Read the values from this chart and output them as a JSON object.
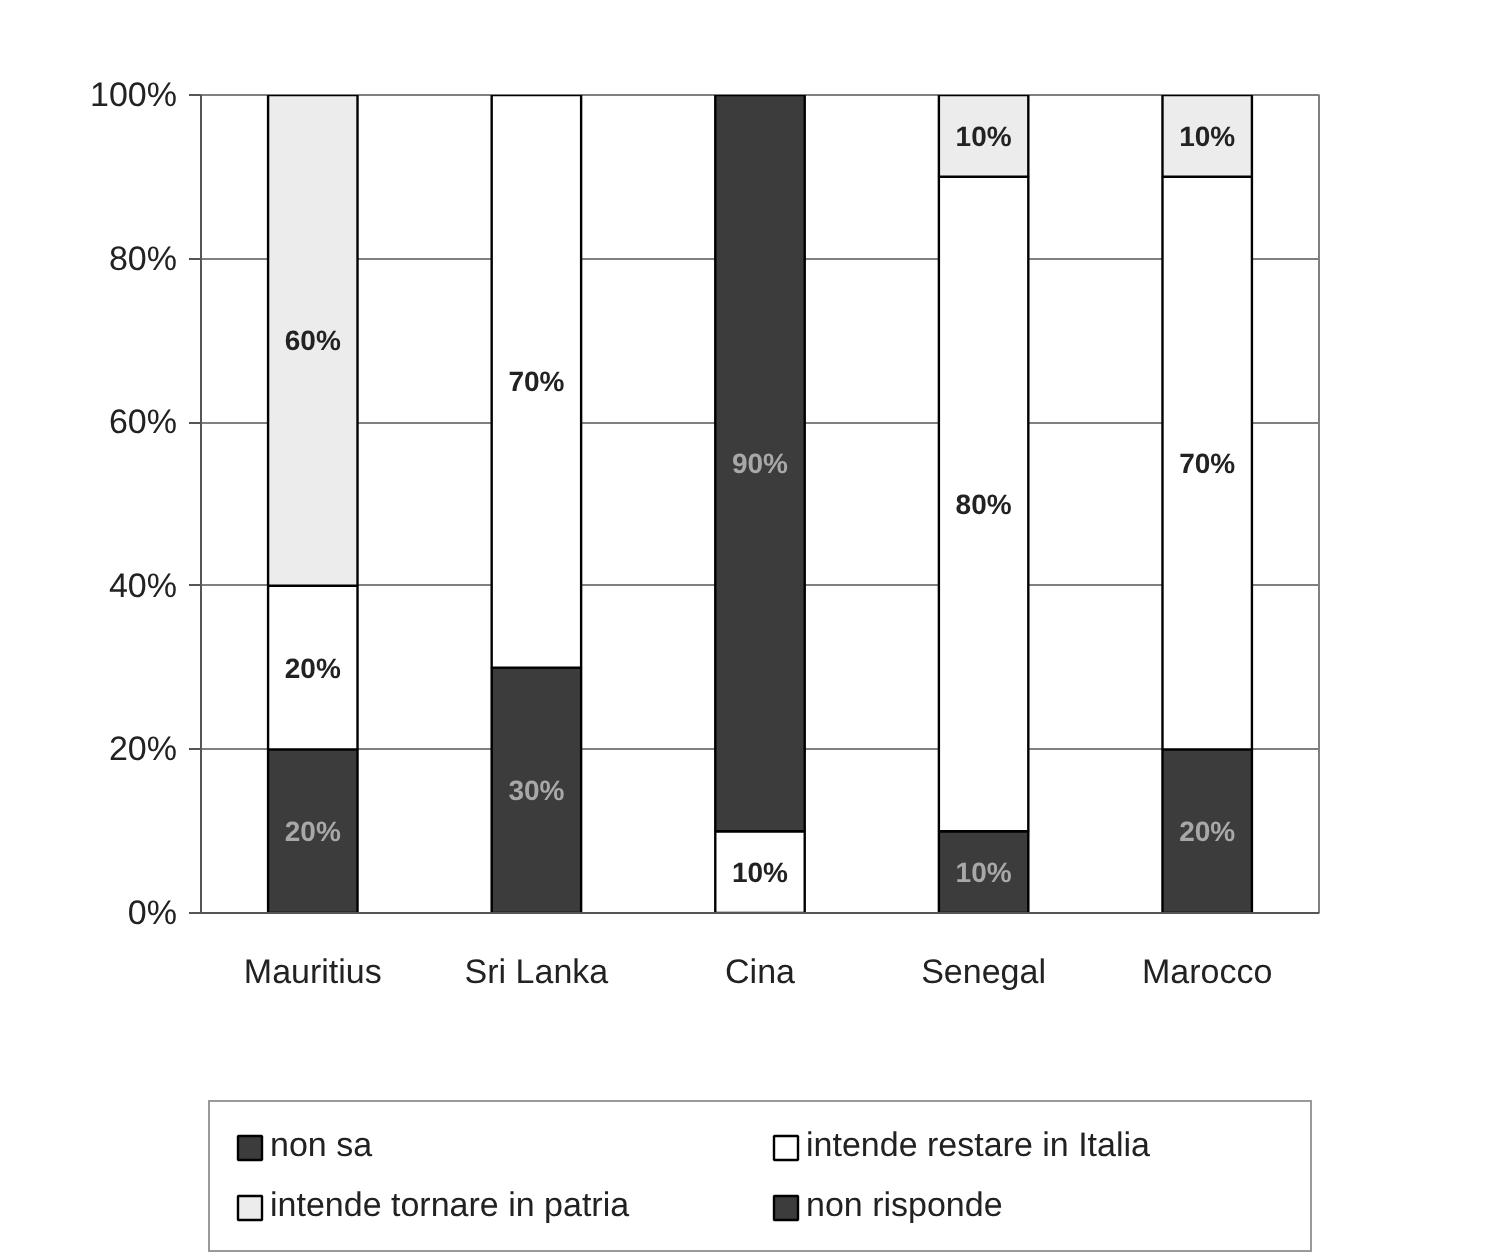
{
  "chart_data": {
    "type": "bar",
    "stacked": true,
    "categories": [
      "Mauritius",
      "Sri Lanka",
      "Cina",
      "Senegal",
      "Marocco"
    ],
    "series": [
      {
        "name": "non sa",
        "color": "#3c3c3c",
        "values": [
          20,
          30,
          null,
          10,
          20
        ],
        "value_labels": [
          "20%",
          "30%",
          null,
          "10%",
          "20%"
        ]
      },
      {
        "name": "intende restare in Italia",
        "color": "#ffffff",
        "values": [
          20,
          70,
          10,
          80,
          70
        ],
        "value_labels": [
          "20%",
          "70%",
          "10%",
          "80%",
          "70%"
        ]
      },
      {
        "name": "intende tornare in patria",
        "color": "#ececec",
        "values": [
          60,
          null,
          null,
          10,
          10
        ],
        "value_labels": [
          "60%",
          null,
          null,
          "10%",
          "10%"
        ]
      },
      {
        "name": "non risponde",
        "color": "#3c3c3c",
        "values": [
          null,
          null,
          90,
          null,
          null
        ],
        "value_labels": [
          null,
          null,
          "90%",
          null,
          null
        ]
      }
    ],
    "ylim": [
      0,
      100
    ],
    "yticks": [
      {
        "value": 0,
        "label": "0%"
      },
      {
        "value": 20,
        "label": "20%"
      },
      {
        "value": 40,
        "label": "40%"
      },
      {
        "value": 60,
        "label": "60%"
      },
      {
        "value": 80,
        "label": "80%"
      },
      {
        "value": 100,
        "label": "100%"
      }
    ],
    "grid": "y",
    "legend": "bottom"
  }
}
